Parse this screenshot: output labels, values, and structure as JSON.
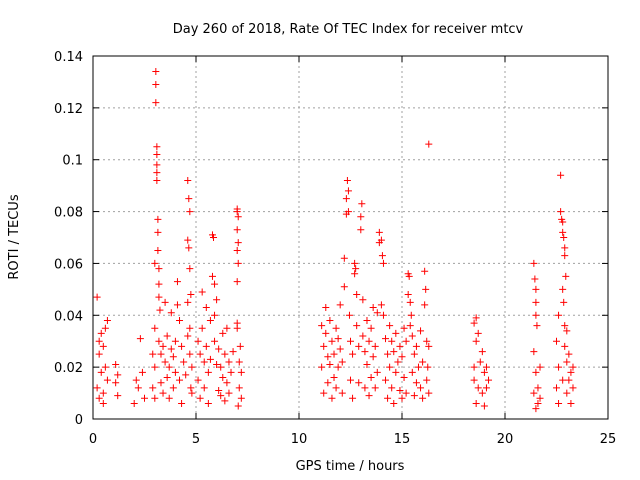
{
  "chart_data": {
    "type": "scatter",
    "title": "Day 260 of 2018, Rate Of TEC Index for receiver mtcv",
    "xlabel": "GPS time / hours",
    "ylabel": "ROTI / TECUs",
    "xlim": [
      0,
      25
    ],
    "ylim": [
      0,
      0.14
    ],
    "xticks": [
      0,
      5,
      10,
      15,
      20,
      25
    ],
    "yticks": [
      0,
      0.02,
      0.04,
      0.06,
      0.08,
      0.1,
      0.12,
      0.14
    ],
    "xtick_labels": [
      "0",
      "5",
      "10",
      "15",
      "20",
      "25"
    ],
    "ytick_labels": [
      "0",
      "0.02",
      "0.04",
      "0.06",
      "0.08",
      "0.1",
      "0.12",
      "0.14"
    ],
    "grid": true,
    "marker": "+",
    "color": "#ff0000",
    "series": [
      {
        "points": [
          [
            0.2,
            0.047
          ],
          [
            0.2,
            0.012
          ],
          [
            0.3,
            0.025
          ],
          [
            0.3,
            0.008
          ],
          [
            0.4,
            0.033
          ],
          [
            0.4,
            0.018
          ],
          [
            0.5,
            0.028
          ],
          [
            0.5,
            0.01
          ],
          [
            0.6,
            0.035
          ],
          [
            0.6,
            0.02
          ],
          [
            0.7,
            0.038
          ],
          [
            0.7,
            0.015
          ],
          [
            0.3,
            0.03
          ],
          [
            0.5,
            0.006
          ],
          [
            1.1,
            0.021
          ],
          [
            1.1,
            0.014
          ],
          [
            1.2,
            0.009
          ],
          [
            1.2,
            0.017
          ],
          [
            2.0,
            0.006
          ],
          [
            2.1,
            0.015
          ],
          [
            2.2,
            0.012
          ],
          [
            2.3,
            0.031
          ],
          [
            2.4,
            0.018
          ],
          [
            2.5,
            0.008
          ],
          [
            2.9,
            0.012
          ],
          [
            2.9,
            0.025
          ],
          [
            3.0,
            0.06
          ],
          [
            3.0,
            0.035
          ],
          [
            3.0,
            0.02
          ],
          [
            3.0,
            0.008
          ],
          [
            3.05,
            0.134
          ],
          [
            3.05,
            0.129
          ],
          [
            3.05,
            0.122
          ],
          [
            3.1,
            0.105
          ],
          [
            3.1,
            0.102
          ],
          [
            3.1,
            0.098
          ],
          [
            3.1,
            0.095
          ],
          [
            3.1,
            0.092
          ],
          [
            3.15,
            0.077
          ],
          [
            3.15,
            0.072
          ],
          [
            3.15,
            0.065
          ],
          [
            3.2,
            0.058
          ],
          [
            3.2,
            0.052
          ],
          [
            3.2,
            0.047
          ],
          [
            3.2,
            0.03
          ],
          [
            3.25,
            0.042
          ],
          [
            3.3,
            0.025
          ],
          [
            3.3,
            0.014
          ],
          [
            3.4,
            0.028
          ],
          [
            3.4,
            0.01
          ],
          [
            3.5,
            0.045
          ],
          [
            3.5,
            0.022
          ],
          [
            3.6,
            0.032
          ],
          [
            3.6,
            0.016
          ],
          [
            3.7,
            0.02
          ],
          [
            3.7,
            0.008
          ],
          [
            3.8,
            0.041
          ],
          [
            3.8,
            0.027
          ],
          [
            3.9,
            0.024
          ],
          [
            3.9,
            0.012
          ],
          [
            4.0,
            0.03
          ],
          [
            4.0,
            0.018
          ],
          [
            4.1,
            0.053
          ],
          [
            4.1,
            0.044
          ],
          [
            4.2,
            0.038
          ],
          [
            4.2,
            0.015
          ],
          [
            4.3,
            0.028
          ],
          [
            4.3,
            0.006
          ],
          [
            4.4,
            0.022
          ],
          [
            4.5,
            0.017
          ],
          [
            4.6,
            0.092
          ],
          [
            4.6,
            0.069
          ],
          [
            4.6,
            0.045
          ],
          [
            4.6,
            0.032
          ],
          [
            4.65,
            0.085
          ],
          [
            4.65,
            0.066
          ],
          [
            4.7,
            0.08
          ],
          [
            4.7,
            0.058
          ],
          [
            4.7,
            0.035
          ],
          [
            4.7,
            0.025
          ],
          [
            4.75,
            0.048
          ],
          [
            4.75,
            0.012
          ],
          [
            4.8,
            0.02
          ],
          [
            4.8,
            0.01
          ],
          [
            5.1,
            0.03
          ],
          [
            5.1,
            0.015
          ],
          [
            5.2,
            0.025
          ],
          [
            5.2,
            0.008
          ],
          [
            5.3,
            0.049
          ],
          [
            5.3,
            0.035
          ],
          [
            5.4,
            0.022
          ],
          [
            5.4,
            0.012
          ],
          [
            5.5,
            0.043
          ],
          [
            5.5,
            0.028
          ],
          [
            5.6,
            0.018
          ],
          [
            5.6,
            0.006
          ],
          [
            5.7,
            0.038
          ],
          [
            5.7,
            0.023
          ],
          [
            5.8,
            0.071
          ],
          [
            5.8,
            0.055
          ],
          [
            5.85,
            0.07
          ],
          [
            5.9,
            0.052
          ],
          [
            5.9,
            0.04
          ],
          [
            5.9,
            0.03
          ],
          [
            6.0,
            0.046
          ],
          [
            6.0,
            0.021
          ],
          [
            6.1,
            0.027
          ],
          [
            6.1,
            0.011
          ],
          [
            6.2,
            0.02
          ],
          [
            6.2,
            0.009
          ],
          [
            6.3,
            0.033
          ],
          [
            6.3,
            0.016
          ],
          [
            6.4,
            0.025
          ],
          [
            6.4,
            0.007
          ],
          [
            6.5,
            0.035
          ],
          [
            6.5,
            0.014
          ],
          [
            6.6,
            0.022
          ],
          [
            6.6,
            0.01
          ],
          [
            6.7,
            0.018
          ],
          [
            6.8,
            0.026
          ],
          [
            7.0,
            0.081
          ],
          [
            7.0,
            0.08
          ],
          [
            7.0,
            0.073
          ],
          [
            7.0,
            0.065
          ],
          [
            7.0,
            0.053
          ],
          [
            7.05,
            0.078
          ],
          [
            7.05,
            0.068
          ],
          [
            7.05,
            0.06
          ],
          [
            7.0,
            0.037
          ],
          [
            7.0,
            0.035
          ],
          [
            7.1,
            0.022
          ],
          [
            7.1,
            0.012
          ],
          [
            7.2,
            0.018
          ],
          [
            7.2,
            0.008
          ],
          [
            7.15,
            0.028
          ],
          [
            7.05,
            0.005
          ],
          [
            11.1,
            0.036
          ],
          [
            11.1,
            0.02
          ],
          [
            11.2,
            0.028
          ],
          [
            11.2,
            0.01
          ],
          [
            11.3,
            0.043
          ],
          [
            11.3,
            0.033
          ],
          [
            11.4,
            0.024
          ],
          [
            11.4,
            0.014
          ],
          [
            11.5,
            0.038
          ],
          [
            11.5,
            0.021
          ],
          [
            11.6,
            0.03
          ],
          [
            11.6,
            0.008
          ],
          [
            11.7,
            0.025
          ],
          [
            11.7,
            0.016
          ],
          [
            11.8,
            0.035
          ],
          [
            11.8,
            0.012
          ],
          [
            11.9,
            0.031
          ],
          [
            11.9,
            0.02
          ],
          [
            12.0,
            0.044
          ],
          [
            12.0,
            0.027
          ],
          [
            12.1,
            0.022
          ],
          [
            12.1,
            0.01
          ],
          [
            12.2,
            0.062
          ],
          [
            12.2,
            0.051
          ],
          [
            12.3,
            0.085
          ],
          [
            12.3,
            0.079
          ],
          [
            12.35,
            0.092
          ],
          [
            12.4,
            0.088
          ],
          [
            12.4,
            0.08
          ],
          [
            12.45,
            0.04
          ],
          [
            12.5,
            0.03
          ],
          [
            12.5,
            0.015
          ],
          [
            12.6,
            0.025
          ],
          [
            12.6,
            0.008
          ],
          [
            12.7,
            0.06
          ],
          [
            12.7,
            0.056
          ],
          [
            12.75,
            0.058
          ],
          [
            12.8,
            0.048
          ],
          [
            12.8,
            0.036
          ],
          [
            12.9,
            0.028
          ],
          [
            12.9,
            0.014
          ],
          [
            13.0,
            0.078
          ],
          [
            13.0,
            0.073
          ],
          [
            13.05,
            0.083
          ],
          [
            13.1,
            0.046
          ],
          [
            13.1,
            0.032
          ],
          [
            13.2,
            0.026
          ],
          [
            13.2,
            0.012
          ],
          [
            13.3,
            0.038
          ],
          [
            13.3,
            0.021
          ],
          [
            13.4,
            0.03
          ],
          [
            13.4,
            0.009
          ],
          [
            13.5,
            0.035
          ],
          [
            13.5,
            0.016
          ],
          [
            13.6,
            0.043
          ],
          [
            13.6,
            0.024
          ],
          [
            13.7,
            0.028
          ],
          [
            13.7,
            0.012
          ],
          [
            13.8,
            0.041
          ],
          [
            13.8,
            0.018
          ],
          [
            13.9,
            0.072
          ],
          [
            13.9,
            0.068
          ],
          [
            14.0,
            0.069
          ],
          [
            14.0,
            0.044
          ],
          [
            14.05,
            0.063
          ],
          [
            14.1,
            0.06
          ],
          [
            14.1,
            0.04
          ],
          [
            14.2,
            0.031
          ],
          [
            14.2,
            0.015
          ],
          [
            14.3,
            0.025
          ],
          [
            14.3,
            0.008
          ],
          [
            14.4,
            0.036
          ],
          [
            14.4,
            0.02
          ],
          [
            14.5,
            0.03
          ],
          [
            14.5,
            0.012
          ],
          [
            14.6,
            0.026
          ],
          [
            14.6,
            0.006
          ],
          [
            14.7,
            0.033
          ],
          [
            14.7,
            0.018
          ],
          [
            14.8,
            0.022
          ],
          [
            14.9,
            0.028
          ],
          [
            14.9,
            0.011
          ],
          [
            15.0,
            0.024
          ],
          [
            15.0,
            0.008
          ],
          [
            15.1,
            0.035
          ],
          [
            15.1,
            0.016
          ],
          [
            15.2,
            0.03
          ],
          [
            15.2,
            0.01
          ],
          [
            15.3,
            0.056
          ],
          [
            15.3,
            0.048
          ],
          [
            15.35,
            0.055
          ],
          [
            15.4,
            0.045
          ],
          [
            15.4,
            0.036
          ],
          [
            15.45,
            0.04
          ],
          [
            15.5,
            0.032
          ],
          [
            15.5,
            0.018
          ],
          [
            15.6,
            0.025
          ],
          [
            15.6,
            0.009
          ],
          [
            15.7,
            0.028
          ],
          [
            15.7,
            0.014
          ],
          [
            15.8,
            0.02
          ],
          [
            15.9,
            0.034
          ],
          [
            15.9,
            0.012
          ],
          [
            16.0,
            0.022
          ],
          [
            16.0,
            0.008
          ],
          [
            16.1,
            0.057
          ],
          [
            16.1,
            0.044
          ],
          [
            16.15,
            0.05
          ],
          [
            16.2,
            0.03
          ],
          [
            16.2,
            0.015
          ],
          [
            16.3,
            0.106
          ],
          [
            16.3,
            0.028
          ],
          [
            16.3,
            0.01
          ],
          [
            16.25,
            0.02
          ],
          [
            18.5,
            0.037
          ],
          [
            18.5,
            0.02
          ],
          [
            18.6,
            0.039
          ],
          [
            18.6,
            0.03
          ],
          [
            18.7,
            0.033
          ],
          [
            18.7,
            0.012
          ],
          [
            18.6,
            0.006
          ],
          [
            18.5,
            0.015
          ],
          [
            18.8,
            0.022
          ],
          [
            18.9,
            0.026
          ],
          [
            18.9,
            0.01
          ],
          [
            19.0,
            0.018
          ],
          [
            19.0,
            0.005
          ],
          [
            19.1,
            0.02
          ],
          [
            19.1,
            0.012
          ],
          [
            19.2,
            0.015
          ],
          [
            21.4,
            0.06
          ],
          [
            21.45,
            0.054
          ],
          [
            21.5,
            0.05
          ],
          [
            21.5,
            0.045
          ],
          [
            21.5,
            0.04
          ],
          [
            21.55,
            0.036
          ],
          [
            21.4,
            0.026
          ],
          [
            21.5,
            0.018
          ],
          [
            21.6,
            0.012
          ],
          [
            21.6,
            0.006
          ],
          [
            21.4,
            0.01
          ],
          [
            21.7,
            0.02
          ],
          [
            21.7,
            0.008
          ],
          [
            21.5,
            0.004
          ],
          [
            22.5,
            0.03
          ],
          [
            22.5,
            0.012
          ],
          [
            22.6,
            0.04
          ],
          [
            22.6,
            0.02
          ],
          [
            22.7,
            0.094
          ],
          [
            22.7,
            0.08
          ],
          [
            22.75,
            0.077
          ],
          [
            22.8,
            0.076
          ],
          [
            22.8,
            0.072
          ],
          [
            22.85,
            0.07
          ],
          [
            22.9,
            0.066
          ],
          [
            22.9,
            0.063
          ],
          [
            22.8,
            0.05
          ],
          [
            22.85,
            0.045
          ],
          [
            22.9,
            0.036
          ],
          [
            22.9,
            0.028
          ],
          [
            22.95,
            0.055
          ],
          [
            23.0,
            0.034
          ],
          [
            23.0,
            0.022
          ],
          [
            23.0,
            0.01
          ],
          [
            23.1,
            0.025
          ],
          [
            23.1,
            0.015
          ],
          [
            23.2,
            0.018
          ],
          [
            23.2,
            0.006
          ],
          [
            23.3,
            0.02
          ],
          [
            23.3,
            0.012
          ],
          [
            22.6,
            0.006
          ],
          [
            22.8,
            0.015
          ]
        ]
      }
    ]
  }
}
